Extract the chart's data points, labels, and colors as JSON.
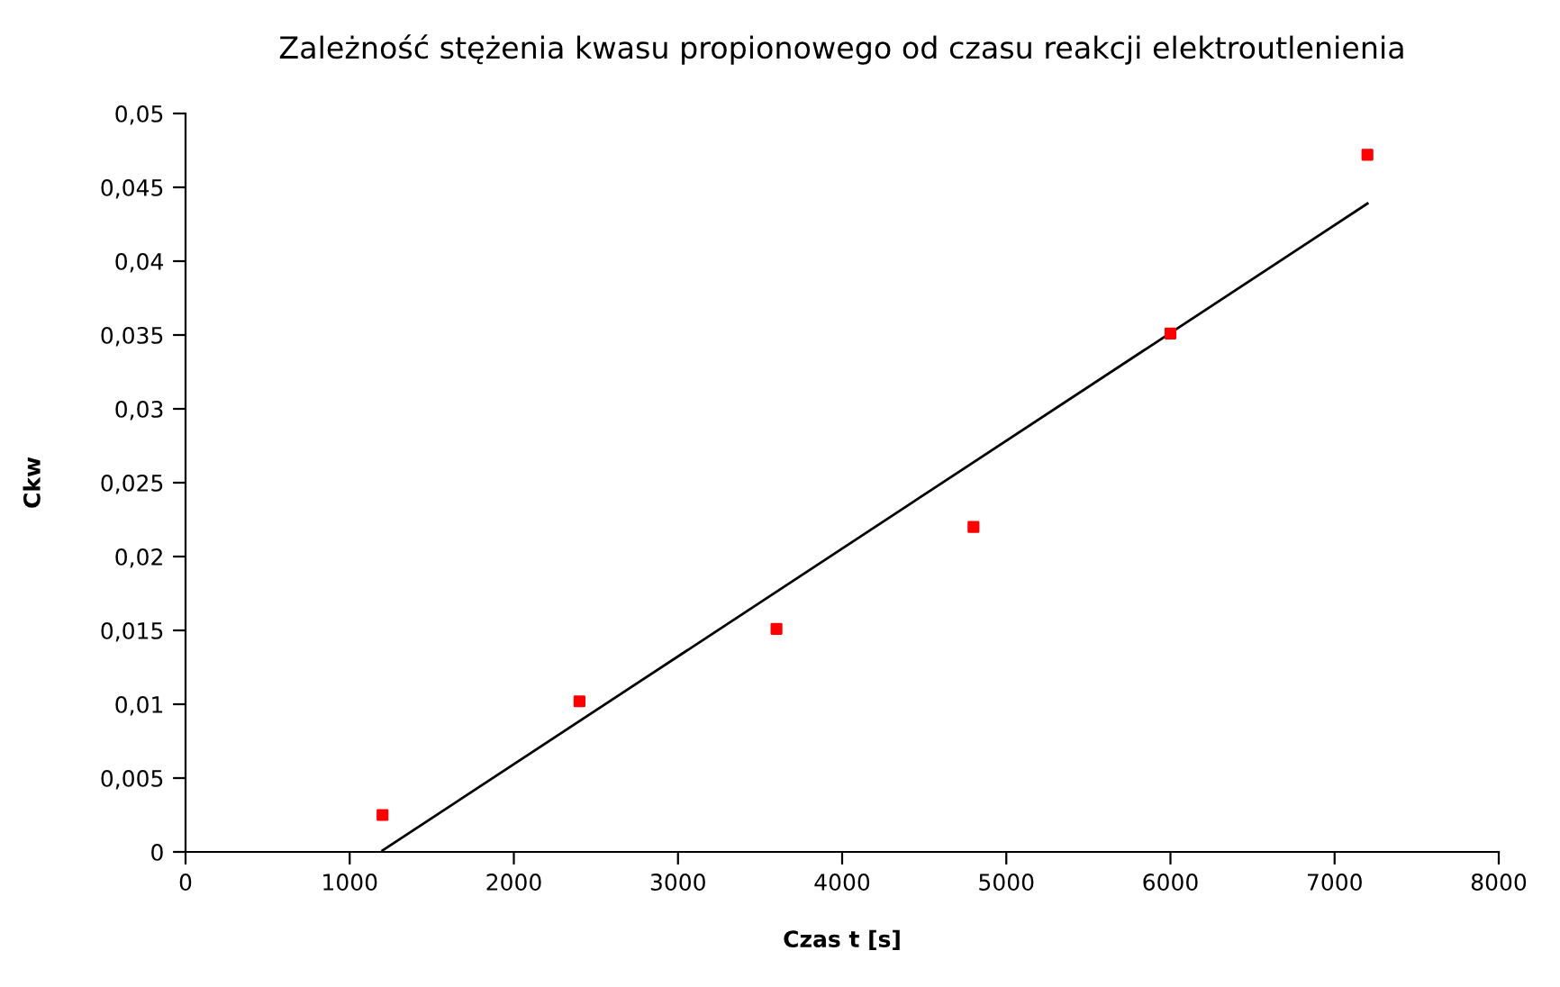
{
  "chart_data": {
    "type": "scatter",
    "title": "Zależność stężenia kwasu propionowego od czasu reakcji elektroutlenienia",
    "xlabel": "Czas t [s]",
    "ylabel": "Ckw",
    "series": [
      {
        "color": "#ff0000",
        "marker": "square",
        "x": [
          1200,
          2400,
          3600,
          4800,
          6000,
          7200
        ],
        "values": [
          0.0025,
          0.0102,
          0.0151,
          0.022,
          0.0351,
          0.0472
        ]
      },
      {
        "type": "line",
        "color": "#000000",
        "marker": "none",
        "x": [
          1200,
          7200
        ],
        "values": [
          0.0001,
          0.0439
        ]
      }
    ],
    "xlim": [
      0,
      8000
    ],
    "xticks": [
      0,
      1000,
      2000,
      3000,
      4000,
      5000,
      6000,
      7000,
      8000
    ],
    "ylim": [
      0,
      0.05
    ],
    "yticks": [
      {
        "value": 0,
        "label": "0"
      },
      {
        "value": 0.005,
        "label": "0,005"
      },
      {
        "value": 0.01,
        "label": "0,01"
      },
      {
        "value": 0.015,
        "label": "0,015"
      },
      {
        "value": 0.02,
        "label": "0,02"
      },
      {
        "value": 0.025,
        "label": "0,025"
      },
      {
        "value": 0.03,
        "label": "0,03"
      },
      {
        "value": 0.035,
        "label": "0,035"
      },
      {
        "value": 0.04,
        "label": "0,04"
      },
      {
        "value": 0.045,
        "label": "0,045"
      },
      {
        "value": 0.05,
        "label": "0,05"
      }
    ],
    "grid": false,
    "legend": false
  }
}
